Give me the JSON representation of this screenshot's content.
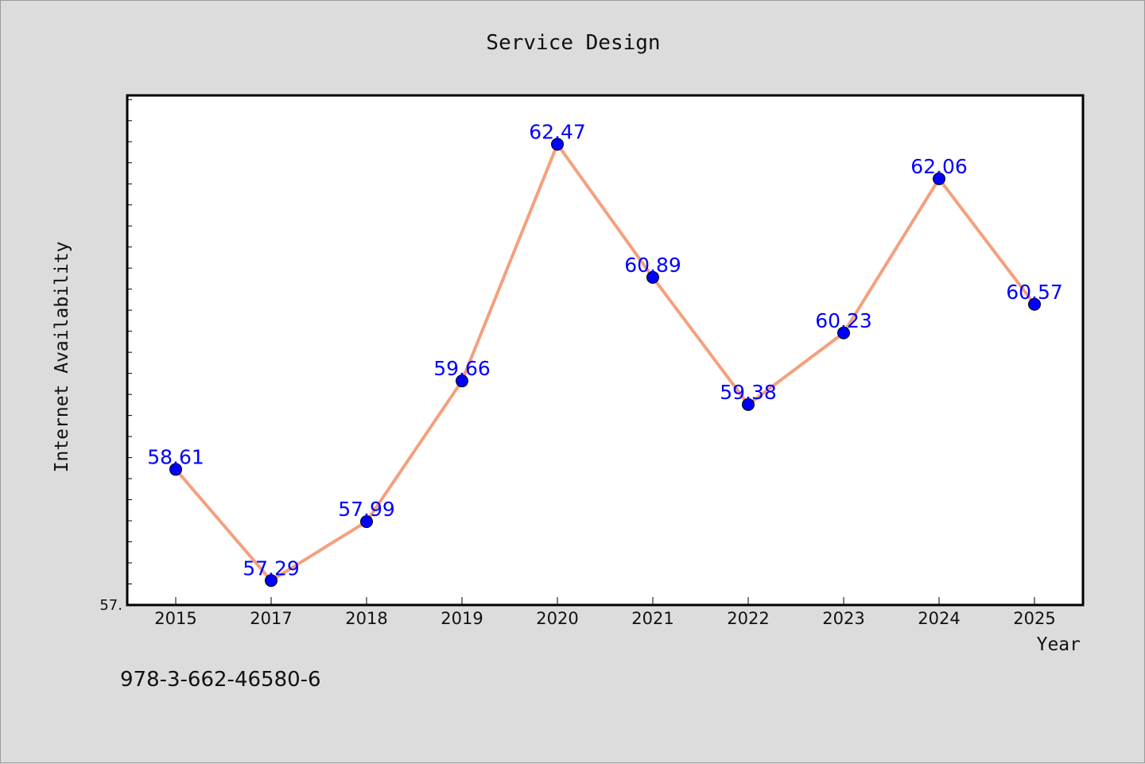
{
  "chart_data": {
    "type": "line",
    "title": "Service Design",
    "xlabel": "Year",
    "ylabel": "Internet Availability",
    "categories": [
      "2015",
      "2017",
      "2018",
      "2019",
      "2020",
      "2021",
      "2022",
      "2023",
      "2024",
      "2025"
    ],
    "series": [
      {
        "values": [
          58.61,
          57.29,
          57.99,
          59.66,
          62.47,
          60.89,
          59.38,
          60.23,
          62.06,
          60.57
        ],
        "labels": [
          "58.61",
          "57.29",
          "57.99",
          "59.66",
          "62.47",
          "60.89",
          "59.38",
          "60.23",
          "62.06",
          "60.57"
        ]
      }
    ],
    "ylim": [
      57.0,
      63.05
    ],
    "y_tick_labels": [
      {
        "value": 57.0,
        "label": "57."
      }
    ],
    "grid": false,
    "legend": "none",
    "colors": {
      "line": "#f4a07e",
      "marker": "#0000ff",
      "label": "#0000ff",
      "plot_background": "#ffffff",
      "page_background": "#dcdcdc"
    }
  },
  "footnote": "978-3-662-46580-6"
}
